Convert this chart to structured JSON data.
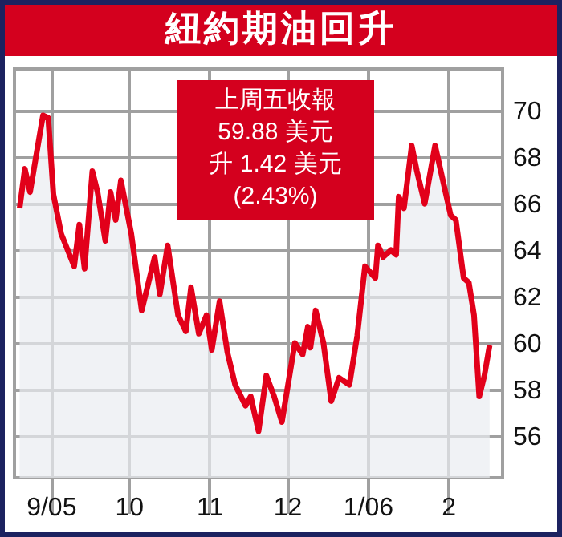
{
  "chart_data": {
    "type": "area",
    "title": "紐約期油回升",
    "annotations": [
      "上周五收報",
      "59.88 美元",
      "升 1.42 美元",
      "(2.43%)"
    ],
    "x": [
      "2005-08-20",
      "2005-08-22",
      "2005-08-24",
      "2005-08-29",
      "2005-08-31",
      "2005-09-02",
      "2005-09-05",
      "2005-09-10",
      "2005-09-12",
      "2005-09-14",
      "2005-09-17",
      "2005-09-19",
      "2005-09-22",
      "2005-09-24",
      "2005-09-26",
      "2005-09-28",
      "2005-10-02",
      "2005-10-06",
      "2005-10-11",
      "2005-10-13",
      "2005-10-16",
      "2005-10-20",
      "2005-10-23",
      "2005-10-25",
      "2005-10-28",
      "2005-10-31",
      "2005-11-02",
      "2005-11-05",
      "2005-11-08",
      "2005-11-11",
      "2005-11-15",
      "2005-11-17",
      "2005-11-20",
      "2005-11-23",
      "2005-11-26",
      "2005-11-29",
      "2005-12-04",
      "2005-12-07",
      "2005-12-09",
      "2005-12-10",
      "2005-12-12",
      "2005-12-15",
      "2005-12-18",
      "2005-12-21",
      "2005-12-25",
      "2005-12-28",
      "2005-12-31",
      "2006-01-04",
      "2006-01-05",
      "2006-01-07",
      "2006-01-10",
      "2006-01-12",
      "2006-01-13",
      "2006-01-15",
      "2006-01-18",
      "2006-01-20",
      "2006-01-23",
      "2006-01-27",
      "2006-01-30",
      "2006-02-02",
      "2006-02-04",
      "2006-02-07",
      "2006-02-09",
      "2006-02-11",
      "2006-02-13",
      "2006-02-15",
      "2006-02-17"
    ],
    "series": [
      {
        "color": "#e2001a",
        "values": [
          65.8,
          67.5,
          66.5,
          69.8,
          69.7,
          66.4,
          64.7,
          63.3,
          65.1,
          63.2,
          67.4,
          66.5,
          64.4,
          66.5,
          65.3,
          67.0,
          64.7,
          61.4,
          63.7,
          62.1,
          64.2,
          61.2,
          60.5,
          62.4,
          60.4,
          61.2,
          59.7,
          61.8,
          59.6,
          58.2,
          57.3,
          57.7,
          56.2,
          58.6,
          57.7,
          56.6,
          60.0,
          59.5,
          60.7,
          59.8,
          61.4,
          60.0,
          57.5,
          58.5,
          58.2,
          60.3,
          63.3,
          62.8,
          64.2,
          63.7,
          64.0,
          63.8,
          66.3,
          65.8,
          68.5,
          67.4,
          66.0,
          68.5,
          67.0,
          65.5,
          65.3,
          62.8,
          62.6,
          61.2,
          57.7,
          58.6,
          59.9
        ]
      }
    ],
    "xlim": [
      "2005-08-18",
      "2006-02-22"
    ],
    "xticks": [
      {
        "value": "2005-09-01",
        "label": "9/05"
      },
      {
        "value": "2005-10-01",
        "label": "10"
      },
      {
        "value": "2005-11-01",
        "label": "11"
      },
      {
        "value": "2005-12-01",
        "label": "12"
      },
      {
        "value": "2006-01-01",
        "label": "1/06"
      },
      {
        "value": "2006-02-01",
        "label": "2"
      }
    ],
    "ylim": [
      54.2,
      71.8
    ],
    "yticks": [
      56,
      58,
      60,
      62,
      64,
      66,
      68,
      70
    ],
    "grid": true
  }
}
